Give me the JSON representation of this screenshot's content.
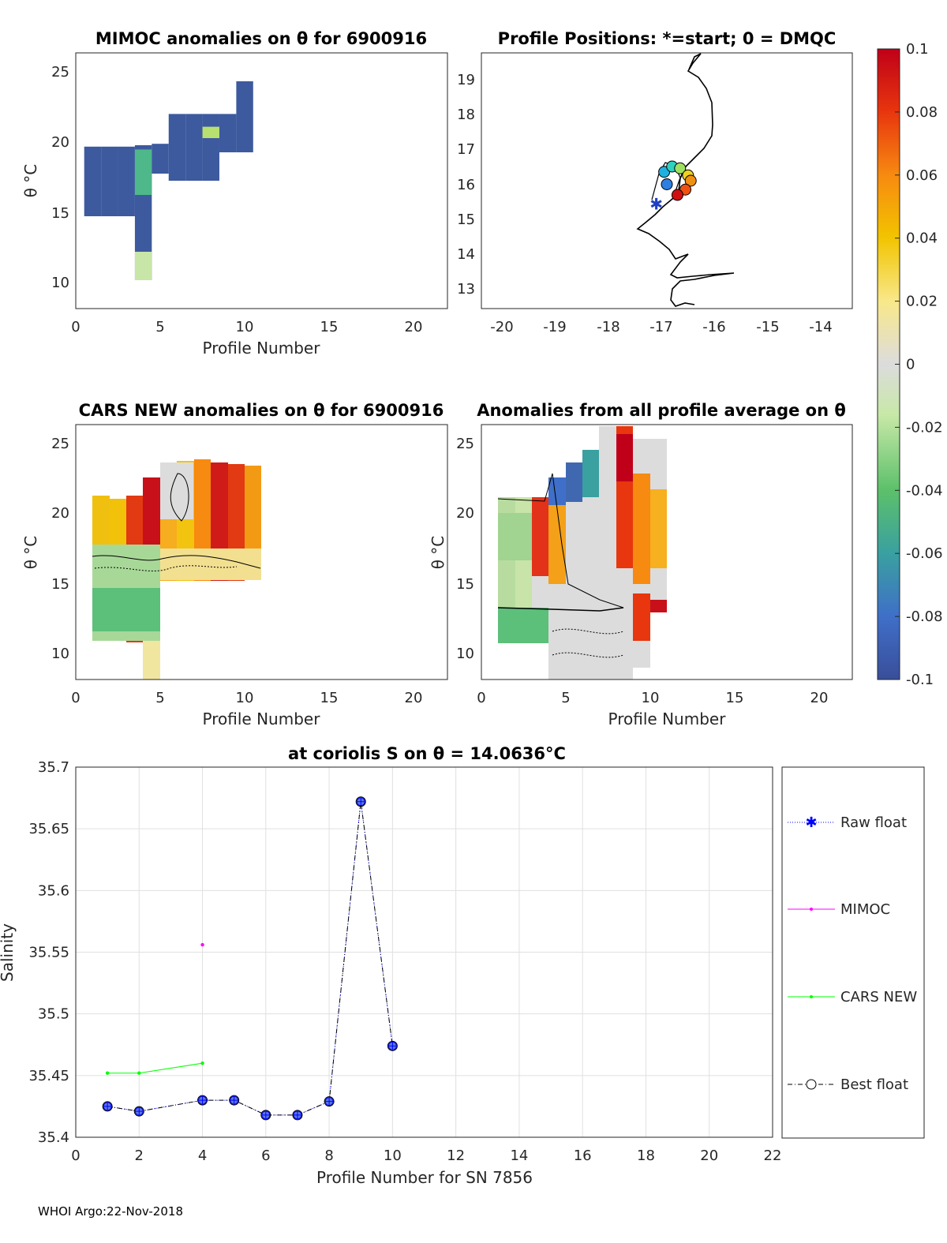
{
  "footer": "WHOI Argo:22-Nov-2018",
  "colorbar": {
    "tick_labels": [
      "0.1",
      "0.08",
      "0.06",
      "0.04",
      "0.02",
      "0",
      "-0.02",
      "-0.04",
      "-0.06",
      "-0.08",
      "-0.1"
    ],
    "min": -0.1,
    "max": 0.1
  },
  "chart_data": [
    {
      "id": "mimoc",
      "type": "heatmap",
      "title": "MIMOC anomalies on θ  for 6900916",
      "xlabel": "Profile Number",
      "ylabel": "θ °C",
      "xlim": [
        0,
        22
      ],
      "ylim": [
        8,
        26
      ],
      "xticks": [
        "0",
        "5",
        "10",
        "15",
        "20"
      ],
      "yticks": [
        "10",
        "15",
        "20",
        "25"
      ],
      "columns": [
        {
          "profile": 1,
          "theta_min": 14.5,
          "theta_max": 19.4,
          "anomaly": -0.09
        },
        {
          "profile": 2,
          "theta_min": 14.5,
          "theta_max": 19.4,
          "anomaly": -0.09
        },
        {
          "profile": 3,
          "theta_min": 14.5,
          "theta_max": 19.4,
          "anomaly": -0.09
        },
        {
          "profile": 4,
          "theta_min": 10.0,
          "theta_max": 19.5,
          "anomaly": -0.09
        },
        {
          "profile": 5,
          "theta_min": 17.5,
          "theta_max": 19.6,
          "anomaly": -0.09
        },
        {
          "profile": 6,
          "theta_min": 17.0,
          "theta_max": 21.7,
          "anomaly": -0.09
        },
        {
          "profile": 7,
          "theta_min": 17.0,
          "theta_max": 21.7,
          "anomaly": -0.09
        },
        {
          "profile": 8,
          "theta_min": 17.0,
          "theta_max": 21.7,
          "anomaly": -0.09
        },
        {
          "profile": 9,
          "theta_min": 19.0,
          "theta_max": 21.7,
          "anomaly": -0.09
        },
        {
          "profile": 10,
          "theta_min": 19.0,
          "theta_max": 24.0,
          "anomaly": -0.09
        }
      ]
    },
    {
      "id": "positions",
      "type": "scatter",
      "title": "Profile Positions: *=start; 0 = DMQC",
      "xlim": [
        -20.5,
        -13.5
      ],
      "ylim": [
        12.6,
        19.8
      ],
      "xticks": [
        "-20",
        "-19",
        "-18",
        "-17",
        "-16",
        "-15",
        "-14"
      ],
      "yticks": [
        "13",
        "14",
        "15",
        "16",
        "17",
        "18",
        "19"
      ],
      "points": [
        {
          "lon": -17.2,
          "lat": 15.55,
          "start": true
        },
        {
          "lon": -17.0,
          "lat": 16.1
        },
        {
          "lon": -17.05,
          "lat": 16.45
        },
        {
          "lon": -16.9,
          "lat": 16.6
        },
        {
          "lon": -16.75,
          "lat": 16.55
        },
        {
          "lon": -16.6,
          "lat": 16.35
        },
        {
          "lon": -16.55,
          "lat": 16.2
        },
        {
          "lon": -16.65,
          "lat": 15.95
        },
        {
          "lon": -16.8,
          "lat": 15.8
        }
      ]
    },
    {
      "id": "cars",
      "type": "heatmap",
      "title": "CARS NEW anomalies on θ for 6900916",
      "xlabel": "Profile Number",
      "ylabel": "θ °C",
      "xlim": [
        0,
        22
      ],
      "ylim": [
        8,
        26
      ],
      "xticks": [
        "0",
        "5",
        "10",
        "15",
        "20"
      ],
      "yticks": [
        "10",
        "15",
        "20",
        "25"
      ]
    },
    {
      "id": "avg",
      "type": "heatmap",
      "title": "Anomalies from all profile average on θ",
      "xlabel": "Profile Number",
      "ylabel": "θ °C",
      "xlim": [
        0,
        22
      ],
      "ylim": [
        8,
        26
      ],
      "xticks": [
        "0",
        "5",
        "10",
        "15",
        "20"
      ],
      "yticks": [
        "10",
        "15",
        "20",
        "25"
      ]
    },
    {
      "id": "salinity",
      "type": "line",
      "title": "at coriolis S on θ = 14.0636°C",
      "xlabel": "Profile Number for SN 7856",
      "ylabel": "Salinity",
      "xlim": [
        0,
        22
      ],
      "ylim": [
        35.4,
        35.7
      ],
      "xticks": [
        "0",
        "2",
        "4",
        "6",
        "8",
        "10",
        "12",
        "14",
        "16",
        "18",
        "20",
        "22"
      ],
      "yticks": [
        "35.4",
        "35.45",
        "35.5",
        "35.55",
        "35.6",
        "35.65",
        "35.7"
      ],
      "series": [
        {
          "name": "Raw float",
          "color": "#0000ff",
          "x": [
            1,
            2,
            4,
            5,
            6,
            7,
            8,
            9,
            10
          ],
          "y": [
            35.425,
            35.421,
            35.43,
            35.43,
            35.418,
            35.418,
            35.429,
            35.672,
            35.474
          ]
        },
        {
          "name": "MIMOC",
          "color": "#ff00ff",
          "x": [
            4
          ],
          "y": [
            35.556
          ]
        },
        {
          "name": "CARS NEW",
          "color": "#00ff00",
          "x": [
            1,
            2,
            4
          ],
          "y": [
            35.452,
            35.452,
            35.46
          ]
        },
        {
          "name": "Best float",
          "color": "#000000",
          "x": [
            1,
            2,
            4,
            5,
            6,
            7,
            8,
            9,
            10
          ],
          "y": [
            35.425,
            35.421,
            35.43,
            35.43,
            35.418,
            35.418,
            35.429,
            35.672,
            35.474
          ]
        }
      ]
    }
  ]
}
